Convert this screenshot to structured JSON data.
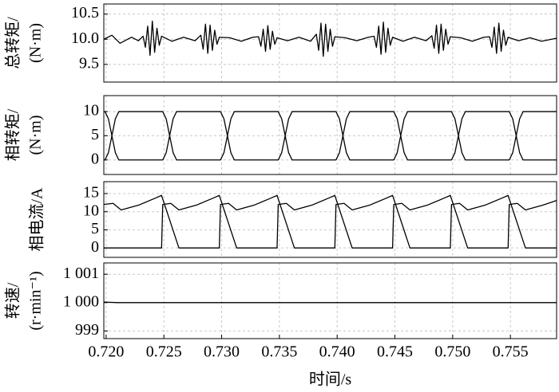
{
  "chart_data": [
    {
      "type": "line",
      "ylabel": [
        "总转矩/",
        "(N·m)"
      ],
      "ylim": [
        9.15,
        10.7
      ],
      "yticks": [
        9.5,
        {
          "value": 10,
          "label": "10.0"
        },
        10.5
      ],
      "grid": true,
      "x": [
        0.7198,
        0.7205,
        0.7212,
        0.7222,
        0.7228,
        0.7232,
        0.7234,
        0.7236,
        0.7238,
        0.724,
        0.7242,
        0.7244,
        0.7246,
        0.7248,
        0.7257,
        0.7267,
        0.7277,
        0.7282,
        0.7284,
        0.7286,
        0.7288,
        0.729,
        0.7292,
        0.7294,
        0.7296,
        0.7298,
        0.7307,
        0.7317,
        0.7327,
        0.7332,
        0.7334,
        0.7336,
        0.7338,
        0.734,
        0.7342,
        0.7344,
        0.7346,
        0.7348,
        0.7357,
        0.7367,
        0.7377,
        0.7382,
        0.7384,
        0.7386,
        0.7388,
        0.739,
        0.7392,
        0.7394,
        0.7396,
        0.7398,
        0.7407,
        0.7417,
        0.7427,
        0.7432,
        0.7434,
        0.7436,
        0.7438,
        0.744,
        0.7442,
        0.7444,
        0.7446,
        0.7448,
        0.7457,
        0.7467,
        0.7477,
        0.7482,
        0.7484,
        0.7486,
        0.7488,
        0.749,
        0.7492,
        0.7494,
        0.7496,
        0.7498,
        0.7507,
        0.7517,
        0.7527,
        0.7532,
        0.7534,
        0.7536,
        0.7538,
        0.754,
        0.7542,
        0.7544,
        0.7546,
        0.7548,
        0.7557,
        0.7567,
        0.7577,
        0.759
      ],
      "series": [
        {
          "color": "#000000",
          "values": [
            10.0,
            10.08,
            9.92,
            10.04,
            9.97,
            10.06,
            9.84,
            10.26,
            9.68,
            10.36,
            9.74,
            10.22,
            9.88,
            10.06,
            9.96,
            10.04,
            9.97,
            10.08,
            9.8,
            10.3,
            9.72,
            10.28,
            9.78,
            10.18,
            9.9,
            10.04,
            10.03,
            9.96,
            10.04,
            10.05,
            9.86,
            10.2,
            9.76,
            10.27,
            9.8,
            10.16,
            9.9,
            10.03,
            9.97,
            10.04,
            9.96,
            10.1,
            9.78,
            10.32,
            9.66,
            10.3,
            9.76,
            10.2,
            9.86,
            10.05,
            10.03,
            9.97,
            10.04,
            10.06,
            9.84,
            10.26,
            9.7,
            10.34,
            9.74,
            10.22,
            9.88,
            10.04,
            9.96,
            10.04,
            9.97,
            10.07,
            9.82,
            10.28,
            9.72,
            10.3,
            9.78,
            10.2,
            9.9,
            10.05,
            10.03,
            9.96,
            10.04,
            10.05,
            9.84,
            10.24,
            9.72,
            10.32,
            9.76,
            10.18,
            9.88,
            10.04,
            9.97,
            10.03,
            9.96,
            10.02
          ]
        }
      ]
    },
    {
      "type": "line",
      "ylabel": [
        "相转矩/",
        "(N·m)"
      ],
      "ylim": [
        -3,
        13.3
      ],
      "yticks": [
        0,
        5,
        10
      ],
      "grid": true,
      "x": [
        0.7198,
        0.7199,
        0.7202,
        0.7205,
        0.7208,
        0.7211,
        0.7249,
        0.7252,
        0.7255,
        0.7258,
        0.7261,
        0.7299,
        0.7302,
        0.7305,
        0.7308,
        0.7311,
        0.7349,
        0.7352,
        0.7355,
        0.7358,
        0.7361,
        0.7399,
        0.7402,
        0.7405,
        0.7408,
        0.7411,
        0.7449,
        0.7452,
        0.7455,
        0.7458,
        0.7461,
        0.7499,
        0.7502,
        0.7505,
        0.7508,
        0.7511,
        0.7549,
        0.7552,
        0.7555,
        0.7558,
        0.7561,
        0.759
      ],
      "series": [
        {
          "color": "#000000",
          "values": [
            10,
            10,
            8.5,
            5,
            1.5,
            0,
            0,
            1.5,
            5,
            8.5,
            10,
            10,
            8.5,
            5,
            1.5,
            0,
            0,
            1.5,
            5,
            8.5,
            10,
            10,
            8.5,
            5,
            1.5,
            0,
            0,
            1.5,
            5,
            8.5,
            10,
            10,
            8.5,
            5,
            1.5,
            0,
            0,
            1.5,
            5,
            8.5,
            10,
            10
          ]
        },
        {
          "color": "#000000",
          "values": [
            0,
            0,
            1.5,
            5,
            8.5,
            10,
            10,
            8.5,
            5,
            1.5,
            0,
            0,
            1.5,
            5,
            8.5,
            10,
            10,
            8.5,
            5,
            1.5,
            0,
            0,
            1.5,
            5,
            8.5,
            10,
            10,
            8.5,
            5,
            1.5,
            0,
            0,
            1.5,
            5,
            8.5,
            10,
            10,
            8.5,
            5,
            1.5,
            0,
            0
          ]
        }
      ]
    },
    {
      "type": "line",
      "ylabel": [
        "相电流/A"
      ],
      "ylim": [
        -2.6,
        18.3
      ],
      "yticks": [
        0,
        5,
        10,
        15
      ],
      "grid": true,
      "series": [
        {
          "color": "#000000",
          "x": [
            0.7198,
            0.7206,
            0.7213,
            0.7228,
            0.7243,
            0.7248,
            0.7263,
            0.7298,
            0.7299,
            0.7306,
            0.7313,
            0.7328,
            0.7343,
            0.7348,
            0.7363,
            0.7398,
            0.7399,
            0.7406,
            0.7413,
            0.7428,
            0.7443,
            0.7448,
            0.7463,
            0.7498,
            0.7499,
            0.7506,
            0.7513,
            0.7528,
            0.7543,
            0.7548,
            0.7563,
            0.759
          ],
          "values": [
            12,
            12.3,
            10.5,
            11.8,
            13.8,
            14.5,
            0,
            0,
            12,
            12.3,
            10.5,
            11.8,
            13.8,
            14.5,
            0,
            0,
            12,
            12.3,
            10.5,
            11.8,
            13.8,
            14.5,
            0,
            0,
            12,
            12.3,
            10.5,
            11.8,
            13.8,
            14.5,
            0,
            0
          ]
        },
        {
          "color": "#000000",
          "x": [
            0.7198,
            0.7248,
            0.7249,
            0.7256,
            0.7263,
            0.7278,
            0.7293,
            0.7298,
            0.7313,
            0.7348,
            0.7349,
            0.7356,
            0.7363,
            0.7378,
            0.7393,
            0.7398,
            0.7413,
            0.7448,
            0.7449,
            0.7456,
            0.7463,
            0.7478,
            0.7493,
            0.7498,
            0.7513,
            0.7548,
            0.7549,
            0.7556,
            0.7563,
            0.7578,
            0.759
          ],
          "values": [
            0,
            0,
            12,
            12.3,
            10.5,
            11.8,
            13.8,
            14.5,
            0,
            0,
            12,
            12.3,
            10.5,
            11.8,
            13.8,
            14.5,
            0,
            0,
            12,
            12.3,
            10.5,
            11.8,
            13.8,
            14.5,
            0,
            0,
            12,
            12.3,
            10.5,
            11.8,
            13.1
          ]
        }
      ]
    },
    {
      "type": "line",
      "ylabel": [
        "转速/",
        "(r·min⁻¹)"
      ],
      "ylim": [
        998.73,
        1001.4
      ],
      "yticks": [
        999,
        {
          "value": 1000,
          "label": "1 000"
        },
        {
          "value": 1001,
          "label": "1 001"
        }
      ],
      "grid": true,
      "xlabel": "时间/s",
      "xlim": [
        0.7198,
        0.759
      ],
      "xticks": [
        {
          "value": 0.72,
          "label": "0.720"
        },
        0.725,
        {
          "value": 0.73,
          "label": "0.730"
        },
        0.735,
        {
          "value": 0.74,
          "label": "0.740"
        },
        0.745,
        {
          "value": 0.75,
          "label": "0.750"
        },
        0.755
      ],
      "x": [
        0.7198,
        0.721,
        0.759
      ],
      "series": [
        {
          "color": "#000000",
          "values": [
            1000.02,
            1000,
            1000
          ]
        }
      ]
    }
  ]
}
